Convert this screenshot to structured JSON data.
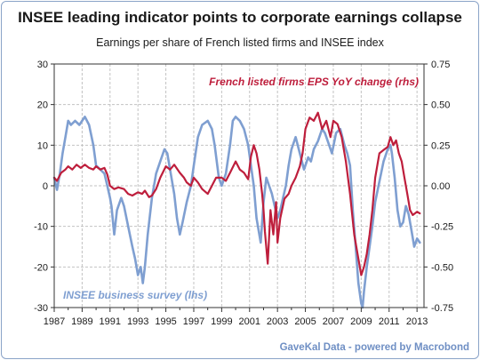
{
  "title": "INSEE leading indicator points to corporate earnings collapse",
  "subtitle": "Earnings per share of French listed firms and INSEE index",
  "source": "GaveKal Data - powered by Macrobond",
  "colors": {
    "insee": "#7f9fd1",
    "eps": "#be1e3c",
    "grid": "#c2c2c2",
    "axis": "#333333"
  },
  "chart_data": {
    "type": "line",
    "title": "INSEE leading indicator points to corporate earnings collapse",
    "subtitle": "Earnings per share of French listed firms and INSEE index",
    "xlim": [
      1987,
      2013.5
    ],
    "x_ticks": [
      "1987",
      "1989",
      "1991",
      "1993",
      "1995",
      "1997",
      "1999",
      "2001",
      "2003",
      "2005",
      "2007",
      "2009",
      "2011",
      "2013"
    ],
    "y_left": {
      "lim": [
        -30,
        30
      ],
      "ticks": [
        "30",
        "20",
        "10",
        "0",
        "-10",
        "-20",
        "-30"
      ]
    },
    "y_right": {
      "lim": [
        -0.75,
        0.75
      ],
      "ticks": [
        "0.75",
        "0.50",
        "0.25",
        "0.00",
        "-0.25",
        "-0.50",
        "-0.75"
      ]
    },
    "grid": true,
    "series": [
      {
        "name": "INSEE business survey (lhs)",
        "axis": "left",
        "x": [
          1987.0,
          1987.2,
          1987.4,
          1987.6,
          1987.8,
          1988.0,
          1988.2,
          1988.5,
          1988.8,
          1989.0,
          1989.2,
          1989.5,
          1989.8,
          1990.0,
          1990.3,
          1990.6,
          1990.8,
          1991.0,
          1991.1,
          1991.3,
          1991.5,
          1991.8,
          1992.0,
          1992.3,
          1992.6,
          1992.8,
          1993.0,
          1993.2,
          1993.35,
          1993.5,
          1993.7,
          1994.0,
          1994.3,
          1994.6,
          1994.9,
          1995.1,
          1995.3,
          1995.6,
          1995.8,
          1996.0,
          1996.2,
          1996.5,
          1996.8,
          1997.0,
          1997.3,
          1997.6,
          1998.0,
          1998.3,
          1998.5,
          1998.8,
          1999.0,
          1999.3,
          1999.6,
          1999.8,
          2000.0,
          2000.3,
          2000.6,
          2000.9,
          2001.1,
          2001.3,
          2001.5,
          2001.8,
          2002.0,
          2002.2,
          2002.4,
          2002.6,
          2002.8,
          2003.0,
          2003.2,
          2003.4,
          2003.6,
          2003.8,
          2004.0,
          2004.3,
          2004.6,
          2004.9,
          2005.2,
          2005.4,
          2005.6,
          2005.9,
          2006.2,
          2006.4,
          2006.7,
          2006.9,
          2007.2,
          2007.5,
          2007.8,
          2008.0,
          2008.2,
          2008.4,
          2008.6,
          2008.8,
          2009.0,
          2009.1,
          2009.2,
          2009.4,
          2009.6,
          2009.8,
          2010.0,
          2010.3,
          2010.6,
          2010.9,
          2011.1,
          2011.2,
          2011.4,
          2011.6,
          2011.8,
          2012.0,
          2012.2,
          2012.4,
          2012.6,
          2012.8,
          2013.0,
          2013.2
        ],
        "values": [
          2,
          -1,
          3,
          8,
          12,
          16,
          15,
          16,
          15,
          16,
          17,
          15,
          10,
          5,
          4,
          3,
          0,
          -3,
          -5,
          -12,
          -6,
          -3,
          -5,
          -10,
          -15,
          -18,
          -22,
          -20,
          -24,
          -20,
          -12,
          -3,
          3,
          6,
          9,
          8,
          4,
          -2,
          -8,
          -12,
          -9,
          -4,
          0,
          5,
          12,
          15,
          16,
          14,
          10,
          2,
          0,
          3,
          10,
          16,
          17,
          16,
          14,
          10,
          5,
          0,
          -8,
          -14,
          -4,
          2,
          0,
          -2,
          -5,
          -8,
          -6,
          -3,
          0,
          5,
          9,
          12,
          8,
          4,
          7,
          6,
          9,
          11,
          14,
          13,
          10,
          8,
          13,
          14,
          10,
          8,
          5,
          -6,
          -15,
          -24,
          -29,
          -30,
          -26,
          -20,
          -15,
          -10,
          -4,
          1,
          6,
          9,
          10,
          8,
          2,
          -6,
          -10,
          -9,
          -5,
          -7,
          -11,
          -15,
          -13,
          -14
        ]
      },
      {
        "name": "French listed firms EPS YoY change (rhs)",
        "axis": "right",
        "x": [
          1987.0,
          1987.2,
          1987.5,
          1987.8,
          1988.0,
          1988.3,
          1988.6,
          1988.9,
          1989.2,
          1989.5,
          1989.8,
          1990.0,
          1990.3,
          1990.6,
          1990.8,
          1991.0,
          1991.3,
          1991.6,
          1992.0,
          1992.3,
          1992.6,
          1993.0,
          1993.3,
          1993.5,
          1993.8,
          1994.0,
          1994.3,
          1994.6,
          1995.0,
          1995.3,
          1995.6,
          1996.0,
          1996.3,
          1996.5,
          1996.8,
          1997.0,
          1997.3,
          1997.6,
          1998.0,
          1998.3,
          1998.6,
          1999.0,
          1999.3,
          1999.6,
          2000.0,
          2000.3,
          2000.6,
          2000.9,
          2001.1,
          2001.3,
          2001.5,
          2001.7,
          2001.9,
          2002.0,
          2002.1,
          2002.3,
          2002.5,
          2002.7,
          2002.9,
          2003.0,
          2003.2,
          2003.5,
          2003.8,
          2004.0,
          2004.3,
          2004.6,
          2004.8,
          2005.0,
          2005.3,
          2005.6,
          2005.9,
          2006.2,
          2006.5,
          2006.8,
          2007.0,
          2007.3,
          2007.6,
          2007.9,
          2008.2,
          2008.5,
          2008.8,
          2009.0,
          2009.2,
          2009.4,
          2009.6,
          2009.8,
          2010.0,
          2010.3,
          2010.6,
          2010.9,
          2011.1,
          2011.3,
          2011.5,
          2011.7,
          2011.9,
          2012.1,
          2012.3,
          2012.5,
          2012.7,
          2013.0,
          2013.2
        ],
        "values": [
          0.05,
          0.03,
          0.08,
          0.1,
          0.12,
          0.1,
          0.13,
          0.11,
          0.13,
          0.11,
          0.1,
          0.12,
          0.1,
          0.11,
          0.07,
          0.0,
          -0.02,
          -0.01,
          -0.02,
          -0.05,
          -0.06,
          -0.04,
          -0.05,
          -0.03,
          -0.07,
          -0.06,
          -0.02,
          0.05,
          0.12,
          0.1,
          0.13,
          0.08,
          0.05,
          0.02,
          0.0,
          0.05,
          0.02,
          -0.02,
          -0.05,
          0.0,
          0.05,
          0.05,
          0.03,
          0.08,
          0.15,
          0.1,
          0.08,
          0.04,
          0.18,
          0.25,
          0.2,
          0.1,
          -0.05,
          -0.15,
          -0.28,
          -0.48,
          -0.15,
          -0.3,
          -0.1,
          -0.35,
          -0.2,
          -0.08,
          -0.05,
          0.0,
          0.05,
          0.12,
          0.2,
          0.35,
          0.42,
          0.4,
          0.45,
          0.35,
          0.4,
          0.3,
          0.4,
          0.38,
          0.3,
          0.15,
          -0.05,
          -0.3,
          -0.45,
          -0.55,
          -0.5,
          -0.42,
          -0.3,
          -0.15,
          0.05,
          0.2,
          0.22,
          0.24,
          0.3,
          0.25,
          0.28,
          0.2,
          0.15,
          0.05,
          -0.05,
          -0.15,
          -0.18,
          -0.16,
          -0.17
        ]
      }
    ],
    "annotations": {
      "insee_label": "INSEE business survey (lhs)",
      "eps_label": "French listed firms EPS YoY change (rhs)"
    }
  }
}
